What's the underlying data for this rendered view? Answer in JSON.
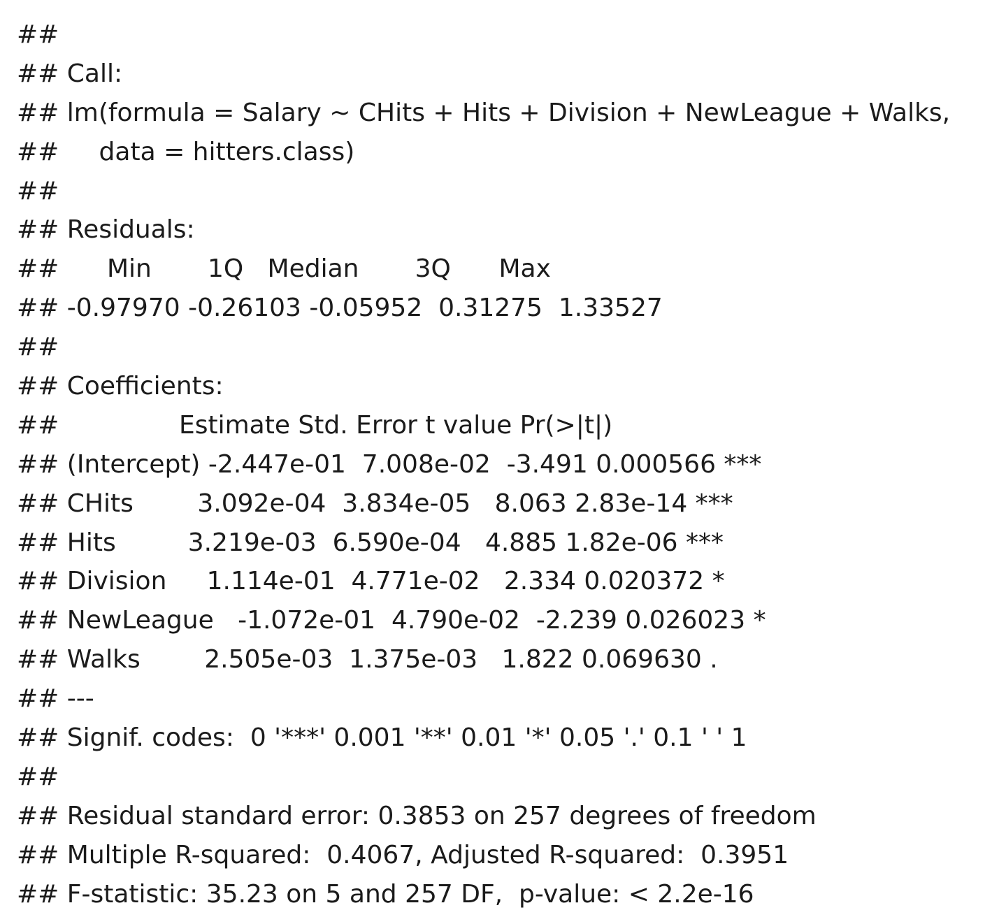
{
  "console_output": {
    "lines": [
      "##",
      "## Call:",
      "## lm(formula = Salary ~ CHits + Hits + Division + NewLeague + Walks,",
      "##     data = hitters.class)",
      "##",
      "## Residuals:",
      "##      Min       1Q   Median       3Q      Max",
      "## -0.97970 -0.26103 -0.05952  0.31275  1.33527",
      "##",
      "## Coefficients:",
      "##               Estimate Std. Error t value Pr(>|t|)",
      "## (Intercept) -2.447e-01  7.008e-02  -3.491 0.000566 ***",
      "## CHits        3.092e-04  3.834e-05   8.063 2.83e-14 ***",
      "## Hits         3.219e-03  6.590e-04   4.885 1.82e-06 ***",
      "## Division     1.114e-01  4.771e-02   2.334 0.020372 *",
      "## NewLeague   -1.072e-01  4.790e-02  -2.239 0.026023 *",
      "## Walks        2.505e-03  1.375e-03   1.822 0.069630 .",
      "## ---",
      "## Signif. codes:  0 '***' 0.001 '**' 0.01 '*' 0.05 '.' 0.1 ' ' 1",
      "##",
      "## Residual standard error: 0.3853 on 257 degrees of freedom",
      "## Multiple R-squared:  0.4067, Adjusted R-squared:  0.3951",
      "## F-statistic: 35.23 on 5 and 257 DF,  p-value: < 2.2e-16"
    ]
  }
}
